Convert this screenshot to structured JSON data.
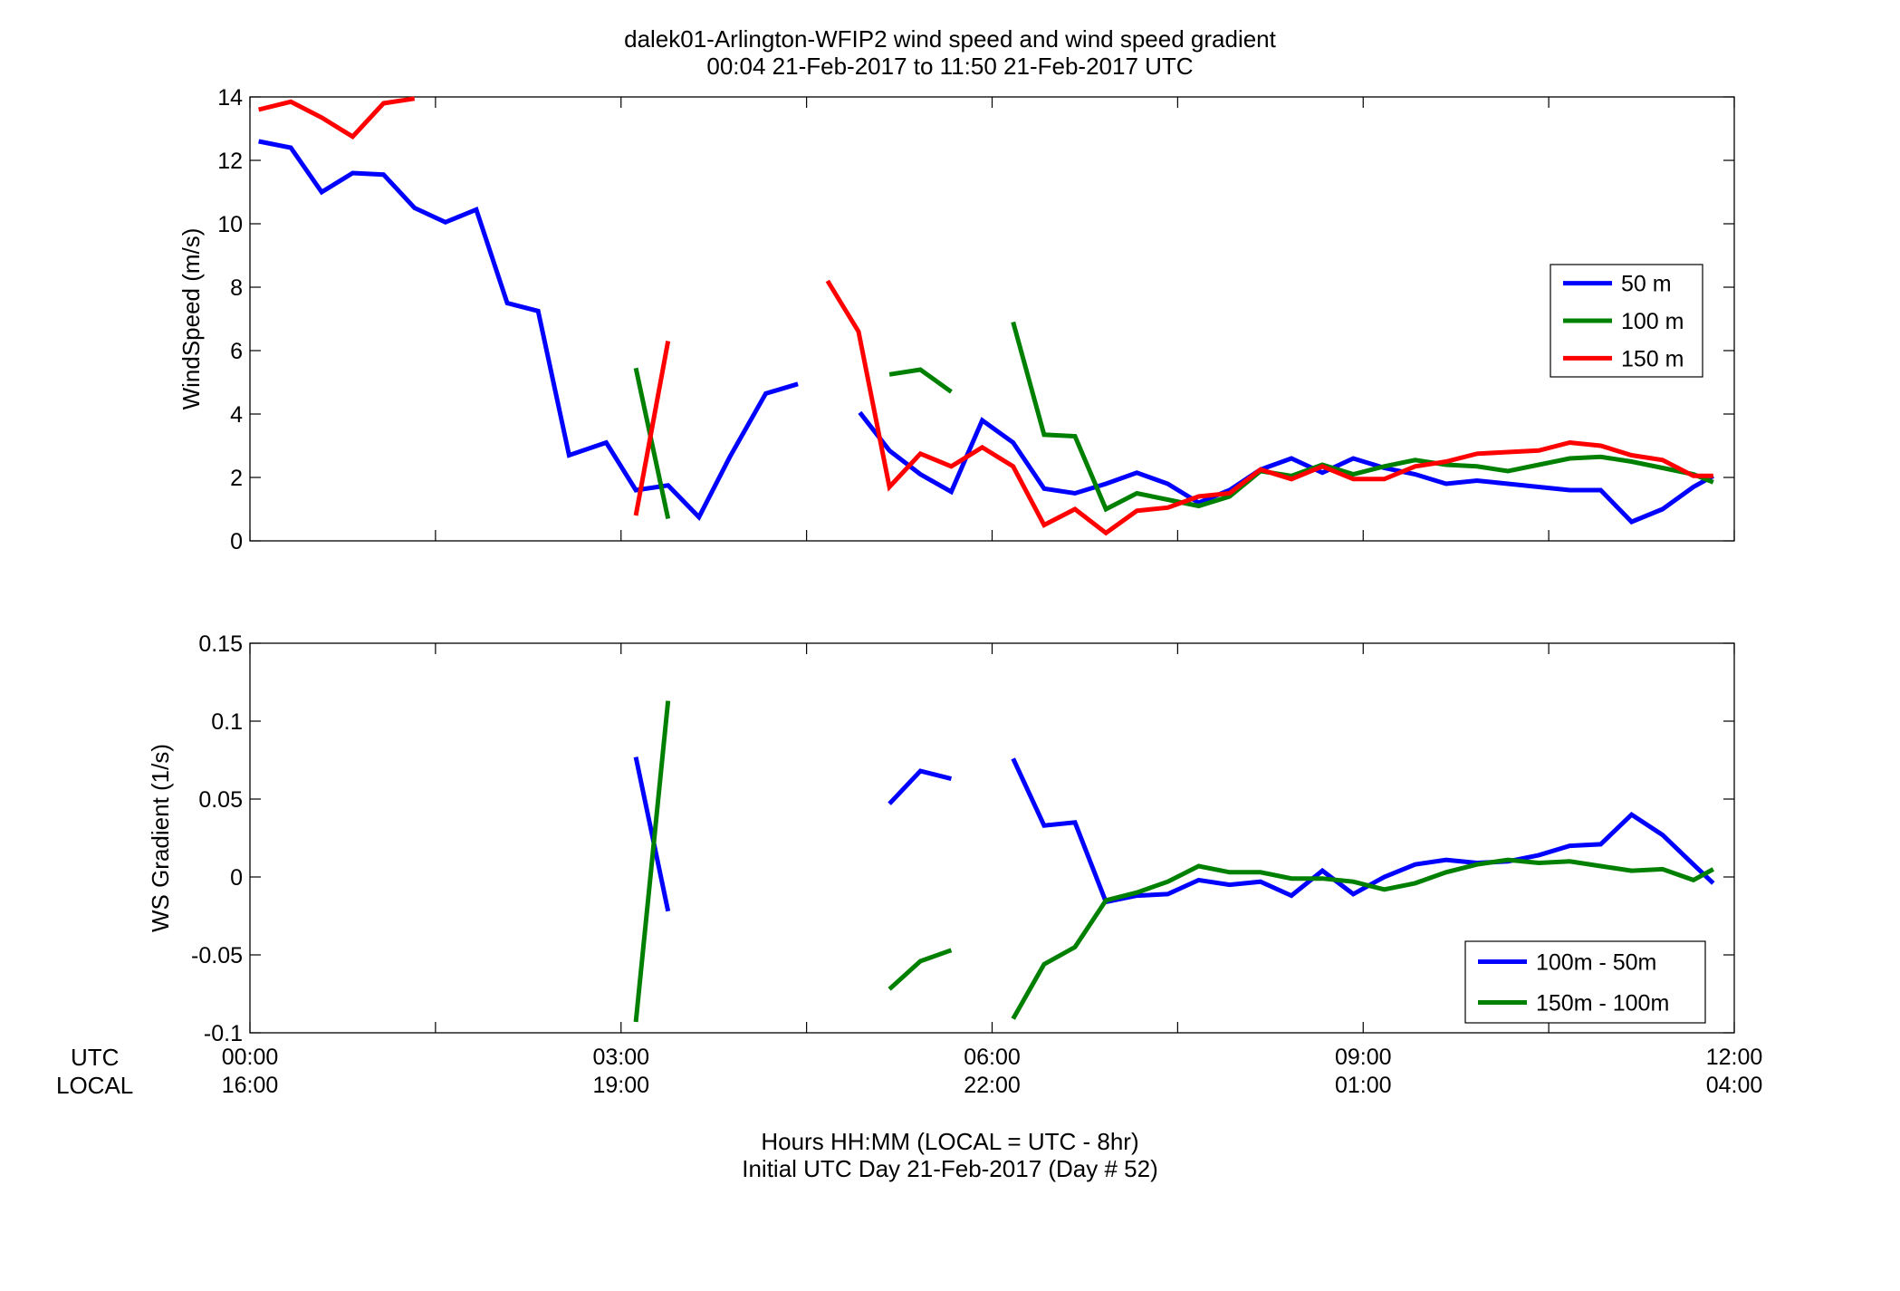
{
  "title": {
    "line1": "dalek01-Arlington-WFIP2  wind speed and wind speed gradient",
    "line2": "00:04 21-Feb-2017 to 11:50 21-Feb-2017  UTC"
  },
  "xaxis": {
    "row_labels": {
      "utc": "UTC",
      "local": "LOCAL"
    },
    "ticks_utc": [
      "00:00",
      "03:00",
      "06:00",
      "09:00",
      "12:00"
    ],
    "ticks_local": [
      "16:00",
      "19:00",
      "22:00",
      "01:00",
      "04:00"
    ],
    "label_line1": "Hours HH:MM  (LOCAL = UTC - 8hr)",
    "label_line2": "Initial UTC Day 21-Feb-2017 (Day # 52)"
  },
  "colors": {
    "blue": "#0000ff",
    "green": "#008000",
    "red": "#ff0000"
  },
  "chart_data": [
    {
      "type": "line",
      "ylabel": "WindSpeed (m/s)",
      "xlim": [
        0,
        12
      ],
      "ylim": [
        0,
        14
      ],
      "yticks": [
        0,
        2,
        4,
        6,
        8,
        10,
        12,
        14
      ],
      "yticklabels": [
        "0",
        "2",
        "4",
        "6",
        "8",
        "10",
        "12",
        "14"
      ],
      "legend_position": "right",
      "series": [
        {
          "name": "50 m",
          "color": "#0000ff",
          "segments": [
            [
              [
                0.07,
                12.6
              ],
              [
                0.33,
                12.4
              ],
              [
                0.58,
                11.0
              ],
              [
                0.83,
                11.6
              ],
              [
                1.08,
                11.55
              ],
              [
                1.33,
                10.5
              ],
              [
                1.58,
                10.05
              ],
              [
                1.83,
                10.45
              ],
              [
                2.08,
                7.5
              ],
              [
                2.33,
                7.25
              ],
              [
                2.58,
                2.7
              ],
              [
                2.88,
                3.1
              ],
              [
                3.12,
                1.6
              ],
              [
                3.38,
                1.75
              ],
              [
                3.63,
                0.75
              ],
              [
                3.88,
                2.65
              ],
              [
                4.17,
                4.65
              ],
              [
                4.43,
                4.95
              ]
            ],
            [
              [
                4.93,
                4.05
              ],
              [
                5.17,
                2.85
              ],
              [
                5.42,
                2.1
              ],
              [
                5.67,
                1.55
              ],
              [
                5.92,
                3.8
              ],
              [
                6.17,
                3.1
              ],
              [
                6.42,
                1.65
              ],
              [
                6.67,
                1.5
              ],
              [
                6.92,
                1.8
              ],
              [
                7.17,
                2.15
              ],
              [
                7.42,
                1.8
              ],
              [
                7.67,
                1.2
              ],
              [
                7.92,
                1.6
              ],
              [
                8.17,
                2.25
              ],
              [
                8.42,
                2.6
              ],
              [
                8.67,
                2.15
              ],
              [
                8.92,
                2.6
              ],
              [
                9.17,
                2.3
              ],
              [
                9.42,
                2.1
              ],
              [
                9.67,
                1.8
              ],
              [
                9.92,
                1.9
              ],
              [
                10.17,
                1.8
              ],
              [
                10.42,
                1.7
              ],
              [
                10.67,
                1.6
              ],
              [
                10.92,
                1.6
              ],
              [
                11.17,
                0.6
              ],
              [
                11.42,
                1.0
              ],
              [
                11.67,
                1.7
              ],
              [
                11.83,
                2.05
              ]
            ]
          ]
        },
        {
          "name": "100 m",
          "color": "#008000",
          "segments": [
            [
              [
                3.12,
                5.45
              ],
              [
                3.38,
                0.7
              ]
            ],
            [
              [
                5.17,
                5.25
              ],
              [
                5.42,
                5.4
              ],
              [
                5.67,
                4.7
              ]
            ],
            [
              [
                6.17,
                6.9
              ],
              [
                6.42,
                3.35
              ],
              [
                6.67,
                3.3
              ],
              [
                6.92,
                1.0
              ],
              [
                7.17,
                1.5
              ],
              [
                7.42,
                1.3
              ],
              [
                7.67,
                1.1
              ],
              [
                7.92,
                1.4
              ],
              [
                8.17,
                2.2
              ],
              [
                8.42,
                2.05
              ],
              [
                8.67,
                2.4
              ],
              [
                8.92,
                2.1
              ],
              [
                9.17,
                2.35
              ],
              [
                9.42,
                2.55
              ],
              [
                9.67,
                2.4
              ],
              [
                9.92,
                2.35
              ],
              [
                10.17,
                2.2
              ],
              [
                10.42,
                2.4
              ],
              [
                10.67,
                2.6
              ],
              [
                10.92,
                2.65
              ],
              [
                11.17,
                2.5
              ],
              [
                11.42,
                2.3
              ],
              [
                11.67,
                2.1
              ],
              [
                11.83,
                1.85
              ]
            ]
          ]
        },
        {
          "name": "150 m",
          "color": "#ff0000",
          "segments": [
            [
              [
                0.07,
                13.6
              ],
              [
                0.33,
                13.85
              ],
              [
                0.58,
                13.35
              ],
              [
                0.83,
                12.75
              ],
              [
                1.08,
                13.8
              ],
              [
                1.33,
                13.95
              ]
            ],
            [
              [
                3.12,
                0.8
              ],
              [
                3.38,
                6.3
              ]
            ],
            [
              [
                4.67,
                8.2
              ],
              [
                4.92,
                6.6
              ],
              [
                5.17,
                1.7
              ],
              [
                5.42,
                2.75
              ],
              [
                5.67,
                2.35
              ],
              [
                5.92,
                2.95
              ],
              [
                6.17,
                2.35
              ],
              [
                6.42,
                0.5
              ],
              [
                6.67,
                1.0
              ],
              [
                6.92,
                0.25
              ],
              [
                7.17,
                0.95
              ],
              [
                7.42,
                1.05
              ],
              [
                7.67,
                1.4
              ],
              [
                7.92,
                1.5
              ],
              [
                8.17,
                2.25
              ],
              [
                8.42,
                1.95
              ],
              [
                8.67,
                2.35
              ],
              [
                8.92,
                1.95
              ],
              [
                9.17,
                1.95
              ],
              [
                9.42,
                2.35
              ],
              [
                9.67,
                2.5
              ],
              [
                9.92,
                2.75
              ],
              [
                10.17,
                2.8
              ],
              [
                10.42,
                2.85
              ],
              [
                10.67,
                3.1
              ],
              [
                10.92,
                3.0
              ],
              [
                11.17,
                2.7
              ],
              [
                11.42,
                2.55
              ],
              [
                11.67,
                2.05
              ],
              [
                11.83,
                2.05
              ]
            ]
          ]
        }
      ]
    },
    {
      "type": "line",
      "ylabel": "WS Gradient (1/s)",
      "xlim": [
        0,
        12
      ],
      "ylim": [
        -0.1,
        0.15
      ],
      "yticks": [
        -0.1,
        -0.05,
        0,
        0.05,
        0.1,
        0.15
      ],
      "yticklabels": [
        "-0.1",
        "-0.05",
        "0",
        "0.05",
        "0.1",
        "0.15"
      ],
      "legend_position": "bottom-right",
      "series": [
        {
          "name": "100m - 50m",
          "color": "#0000ff",
          "segments": [
            [
              [
                3.12,
                0.077
              ],
              [
                3.38,
                -0.022
              ]
            ],
            [
              [
                5.17,
                0.047
              ],
              [
                5.42,
                0.068
              ],
              [
                5.67,
                0.063
              ]
            ],
            [
              [
                6.17,
                0.076
              ],
              [
                6.42,
                0.033
              ],
              [
                6.67,
                0.035
              ],
              [
                6.92,
                -0.016
              ],
              [
                7.17,
                -0.012
              ],
              [
                7.42,
                -0.011
              ],
              [
                7.67,
                -0.002
              ],
              [
                7.92,
                -0.005
              ],
              [
                8.17,
                -0.003
              ],
              [
                8.42,
                -0.012
              ],
              [
                8.67,
                0.004
              ],
              [
                8.92,
                -0.011
              ],
              [
                9.17,
                0.0
              ],
              [
                9.42,
                0.008
              ],
              [
                9.67,
                0.011
              ],
              [
                9.92,
                0.009
              ],
              [
                10.17,
                0.01
              ],
              [
                10.42,
                0.014
              ],
              [
                10.67,
                0.02
              ],
              [
                10.92,
                0.021
              ],
              [
                11.17,
                0.04
              ],
              [
                11.42,
                0.027
              ],
              [
                11.67,
                0.008
              ],
              [
                11.83,
                -0.004
              ]
            ]
          ]
        },
        {
          "name": "150m - 100m",
          "color": "#008000",
          "segments": [
            [
              [
                3.12,
                -0.093
              ],
              [
                3.38,
                0.113
              ]
            ],
            [
              [
                5.17,
                -0.072
              ],
              [
                5.42,
                -0.054
              ],
              [
                5.67,
                -0.047
              ]
            ],
            [
              [
                6.17,
                -0.091
              ],
              [
                6.42,
                -0.056
              ],
              [
                6.67,
                -0.045
              ],
              [
                6.92,
                -0.015
              ],
              [
                7.17,
                -0.01
              ],
              [
                7.42,
                -0.003
              ],
              [
                7.67,
                0.007
              ],
              [
                7.92,
                0.003
              ],
              [
                8.17,
                0.003
              ],
              [
                8.42,
                -0.001
              ],
              [
                8.67,
                -0.001
              ],
              [
                8.92,
                -0.003
              ],
              [
                9.17,
                -0.008
              ],
              [
                9.42,
                -0.004
              ],
              [
                9.67,
                0.003
              ],
              [
                9.92,
                0.008
              ],
              [
                10.17,
                0.011
              ],
              [
                10.42,
                0.009
              ],
              [
                10.67,
                0.01
              ],
              [
                10.92,
                0.007
              ],
              [
                11.17,
                0.004
              ],
              [
                11.42,
                0.005
              ],
              [
                11.67,
                -0.002
              ],
              [
                11.83,
                0.005
              ]
            ]
          ]
        }
      ]
    }
  ]
}
